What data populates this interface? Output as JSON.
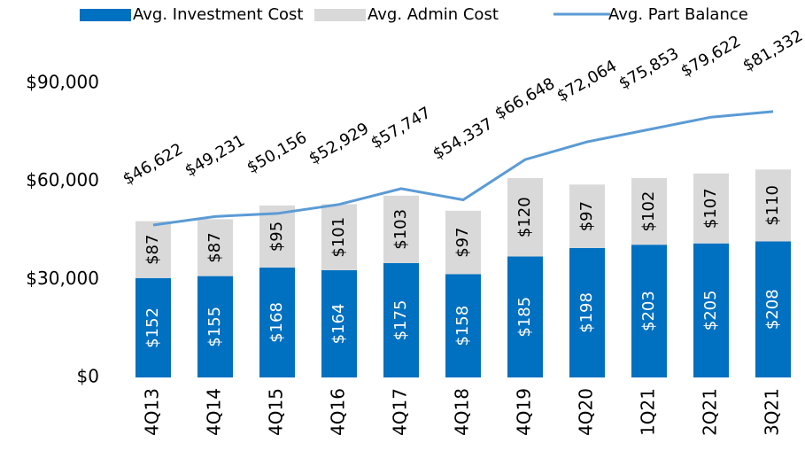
{
  "chart_data": {
    "type": "bar",
    "categories": [
      "4Q13",
      "4Q14",
      "4Q15",
      "4Q16",
      "4Q17",
      "4Q18",
      "4Q19",
      "4Q20",
      "1Q21",
      "2Q21",
      "3Q21"
    ],
    "series": [
      {
        "name": "Avg. Investment Cost",
        "color": "#0070c0",
        "axis": "y2",
        "type": "bar",
        "values": [
          152,
          155,
          168,
          164,
          175,
          158,
          185,
          198,
          203,
          205,
          208
        ],
        "value_labels": [
          "$152",
          "$155",
          "$168",
          "$164",
          "$175",
          "$158",
          "$185",
          "$198",
          "$203",
          "$205",
          "$208"
        ]
      },
      {
        "name": "Avg. Admin Cost",
        "color": "#d9d9d9",
        "axis": "y2",
        "type": "bar",
        "values": [
          87,
          87,
          95,
          101,
          103,
          97,
          120,
          97,
          102,
          107,
          110
        ],
        "value_labels": [
          "$87",
          "$87",
          "$95",
          "$101",
          "$103",
          "$97",
          "$120",
          "$97",
          "$102",
          "$107",
          "$110"
        ]
      },
      {
        "name": "Avg. Part Balance",
        "color": "#5b9bd5",
        "type": "line",
        "values": [
          46622,
          49231,
          50156,
          52929,
          57747,
          54337,
          66648,
          72064,
          75853,
          79622,
          81332
        ],
        "value_labels": [
          "$46,622",
          "$49,231",
          "$50,156",
          "$52,929",
          "$57,747",
          "$54,337",
          "$66,648",
          "$72,064",
          "$75,853",
          "$79,622",
          "$81,332"
        ]
      }
    ],
    "ylim": [
      0,
      100000
    ],
    "yticks": [
      {
        "value": 0,
        "label": "$0"
      },
      {
        "value": 30000,
        "label": "$30,000"
      },
      {
        "value": 60000,
        "label": "$60,000"
      },
      {
        "value": 90000,
        "label": "$90,000"
      }
    ],
    "y2lim": [
      0,
      500
    ],
    "stacked": true
  }
}
